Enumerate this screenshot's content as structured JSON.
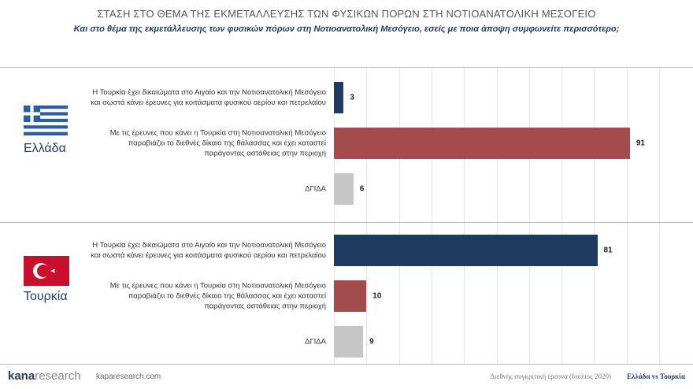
{
  "chart_data": {
    "type": "bar",
    "title": "ΣΤΑΣΗ ΣΤΟ ΘΕΜΑ ΤΗΣ ΕΚΜΕΤΑΛΛΕΥΣΗΣ ΤΩΝ ΦΥΣΙΚΩΝ ΠΟΡΩΝ ΣΤΗ ΝΟΤΙΟΑΝΑΤΟΛΙΚΗ ΜΕΣΟΓΕΙΟ",
    "subtitle": "Και στο θέμα της εκμετάλλευσης των φυσικών πόρων στη Νοτιοανατολική Μεσόγειο, εσείς με ποια άποψη συμφωνείτε περισσότερο;",
    "xlim": [
      0,
      100
    ],
    "xticks": [
      0,
      10,
      20,
      30,
      40,
      50,
      60,
      70,
      80,
      90,
      100
    ],
    "grid": true,
    "panels": [
      {
        "name": "Ελλάδα",
        "categories": [
          "Η Τουρκία έχει δικαιώματα στο Αιγαίο και την Νοτιοανατολική Μεσόγειο και σωστά κάνει έρευνες για κοιτάσματα φυσικού αερίου και πετρελαίου",
          "Με τις έρευνες που κάνει η Τουρκία στη Νοτιοανατολική Μεσόγειο παραβιάζει το διεθνές δίκαιο της θάλασσας και έχει καταστεί παράγοντας αστάθειας στην περιοχή",
          "ΔΓΙΔΑ"
        ],
        "values": [
          3,
          91,
          6
        ],
        "colors": [
          "#1f3a5f",
          "#a34b4d",
          "#c6c6c6"
        ]
      },
      {
        "name": "Τουρκία",
        "categories": [
          "Η Τουρκία έχει δικαιώματα στο Αιγαίο και την Νοτιοανατολική Μεσόγειο και σωστά κάνει έρευνες για κοιτάσματα φυσικού αερίου και πετρελαίου",
          "Με τις έρευνες που κάνει η Τουρκία στη Νοτιοανατολική Μεσόγειο παραβιάζει το διεθνές δίκαιο της θάλασσας και έχει καταστεί παράγοντας αστάθειας στην περιοχή",
          "ΔΓΙΔΑ"
        ],
        "values": [
          81,
          10,
          9
        ],
        "colors": [
          "#1f3a5f",
          "#a34b4d",
          "#c6c6c6"
        ]
      }
    ]
  },
  "footer": {
    "brand": "kana",
    "brand2": "research",
    "website": "kaparesearch.com",
    "source": "Διεθνής συγκριτική έρευνα (Ιούλιος 2020)",
    "tag": "Ελλάδα vs Τουρκία"
  }
}
